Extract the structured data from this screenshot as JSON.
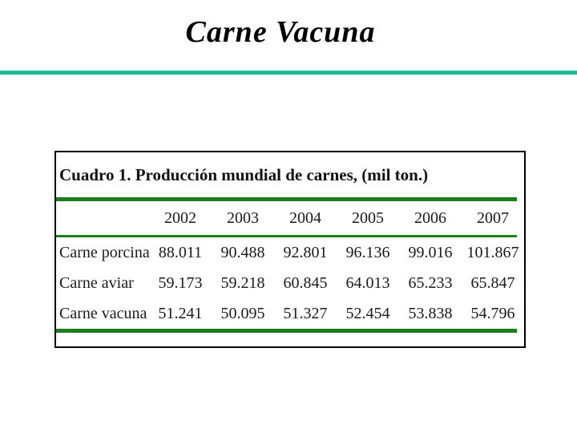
{
  "slide": {
    "title": "Carne Vacuna"
  },
  "table": {
    "caption": "Cuadro 1. Producción mundial de carnes, (mil ton.)",
    "columns": [
      "2002",
      "2003",
      "2004",
      "2005",
      "2006",
      "2007"
    ],
    "rows": [
      {
        "label": "Carne porcina",
        "values": [
          "88.011",
          "90.488",
          "92.801",
          "96.136",
          "99.016",
          "101.867"
        ]
      },
      {
        "label": "Carne aviar",
        "values": [
          "59.173",
          "59.218",
          "60.845",
          "64.013",
          "65.233",
          "65.847"
        ]
      },
      {
        "label": "Carne vacuna",
        "values": [
          "51.241",
          "50.095",
          "51.327",
          "52.454",
          "53.838",
          "54.796"
        ]
      }
    ]
  },
  "chart_data": {
    "type": "table",
    "title": "Cuadro 1. Producción mundial de carnes, (mil ton.)",
    "categories": [
      "2002",
      "2003",
      "2004",
      "2005",
      "2006",
      "2007"
    ],
    "series": [
      {
        "name": "Carne porcina",
        "values": [
          88.011,
          90.488,
          92.801,
          96.136,
          99.016,
          101.867
        ]
      },
      {
        "name": "Carne aviar",
        "values": [
          59.173,
          59.218,
          60.845,
          64.013,
          65.233,
          65.847
        ]
      },
      {
        "name": "Carne vacuna",
        "values": [
          51.241,
          50.095,
          51.327,
          52.454,
          53.838,
          54.796
        ]
      }
    ]
  },
  "colors": {
    "accent_teal": "#1fbc98",
    "table_rule_green": "#1e7e1e",
    "title_color": "#000000",
    "border_color": "#000000"
  }
}
